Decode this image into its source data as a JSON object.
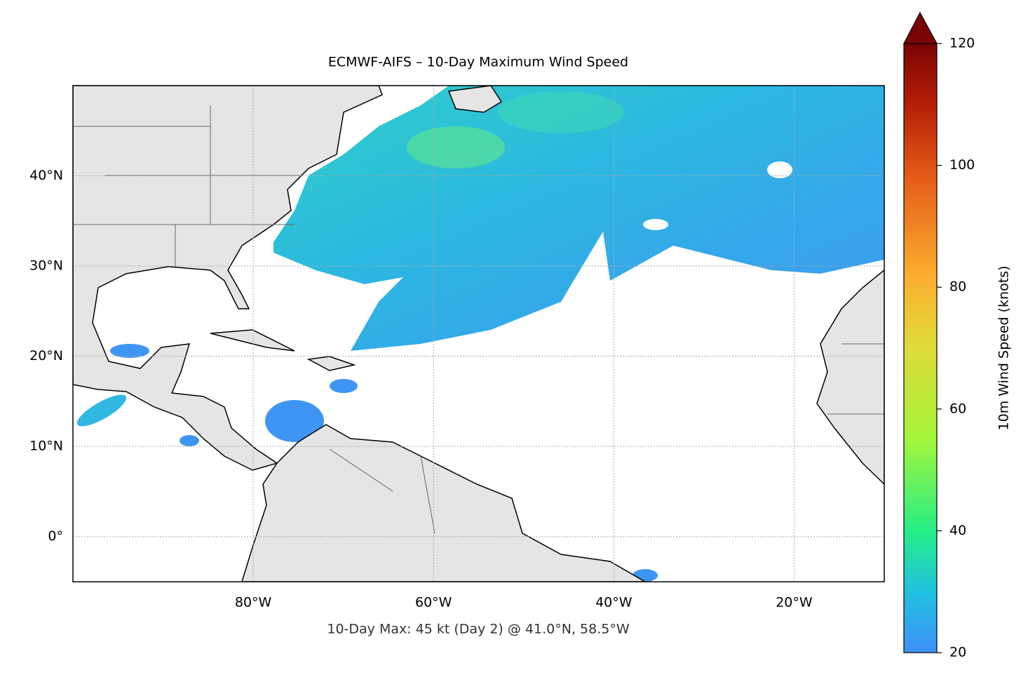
{
  "chart_data": {
    "type": "map",
    "title": "ECMWF-AIFS – 10-Day Maximum Wind Speed",
    "annotation": "10-Day Max: 45 kt (Day 2) @ 41.0°N, 58.5°W",
    "xlim": [
      -100,
      -10
    ],
    "ylim": [
      -5,
      50
    ],
    "xticks": [
      {
        "value": -80,
        "label": "80°W"
      },
      {
        "value": -60,
        "label": "60°W"
      },
      {
        "value": -40,
        "label": "40°W"
      },
      {
        "value": -20,
        "label": "20°W"
      }
    ],
    "yticks": [
      {
        "value": 0,
        "label": "0°"
      },
      {
        "value": 10,
        "label": "10°N"
      },
      {
        "value": 20,
        "label": "20°N"
      },
      {
        "value": 30,
        "label": "30°N"
      },
      {
        "value": 40,
        "label": "40°N"
      }
    ],
    "grid": true,
    "colorbar": {
      "label": "10m Wind Speed (knots)",
      "lim": [
        20,
        120
      ],
      "ticks": [
        20,
        40,
        60,
        80,
        100,
        120
      ],
      "extend": "max"
    }
  }
}
